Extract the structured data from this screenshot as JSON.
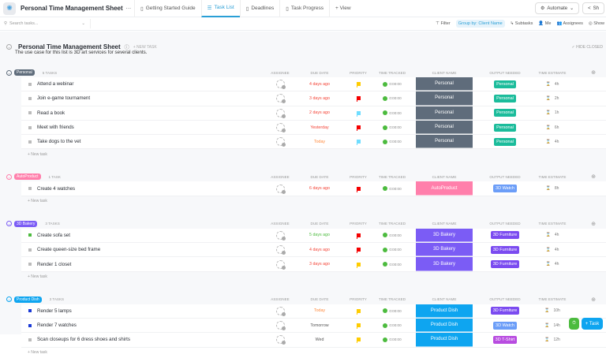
{
  "topbar": {
    "title": "Personal Time Management Sheet",
    "tabs": [
      {
        "label": "Getting Started Guide",
        "active": false
      },
      {
        "label": "Task List",
        "active": true
      },
      {
        "label": "Deadlines",
        "active": false
      },
      {
        "label": "Task Progress",
        "active": false
      }
    ],
    "add_view": "+ View",
    "automate": "Automate",
    "share": "Sh"
  },
  "toolbar": {
    "search_placeholder": "Search tasks...",
    "filter": "Filter",
    "group_by": "Group by: Client Name",
    "subtasks": "Subtasks",
    "me": "Me",
    "assignees": "Assignees",
    "show": "Show"
  },
  "list": {
    "title": "Personal Time Management Sheet",
    "new_task": "+ NEW TASK",
    "hide_closed": "✓ HIDE CLOSED",
    "description": "The use case for this list is 3D art services for several clients."
  },
  "columns": [
    "ASSIGNEE",
    "DUE DATE",
    "PRIORITY",
    "TIME TRACKED",
    "CLIENT NAME",
    "OUTPUT NEEDED",
    "TIME ESTIMATE"
  ],
  "new_task_label": "+ New task",
  "fab": {
    "task": "+ Task"
  },
  "groups": [
    {
      "name": "Personal",
      "count": "5 TASKS",
      "color": "#5f6c7b",
      "tasks": [
        {
          "name": "Attend a webinar",
          "status_color": "#bbbbbb",
          "due": "4 days ago",
          "due_color": "#f44336",
          "priority": "#ffcc00",
          "tracked": "0:00:00",
          "client": "Personal",
          "output": "Personal",
          "output_color": "#1bbc9b",
          "estimate": "4h"
        },
        {
          "name": "Join e-game tournament",
          "status_color": "#bbbbbb",
          "due": "3 days ago",
          "due_color": "#f44336",
          "priority": "#f50000",
          "tracked": "0:00:00",
          "client": "Personal",
          "output": "Personal",
          "output_color": "#1bbc9b",
          "estimate": "2h"
        },
        {
          "name": "Read a book",
          "status_color": "#bbbbbb",
          "due": "2 days ago",
          "due_color": "#f44336",
          "priority": "#6fddff",
          "tracked": "0:00:00",
          "client": "Personal",
          "output": "Personal",
          "output_color": "#1bbc9b",
          "estimate": "1h"
        },
        {
          "name": "Meet with friends",
          "status_color": "#bbbbbb",
          "due": "Yesterday",
          "due_color": "#f44336",
          "priority": "#f50000",
          "tracked": "0:00:00",
          "client": "Personal",
          "output": "Personal",
          "output_color": "#1bbc9b",
          "estimate": "6h"
        },
        {
          "name": "Take dogs to the vet",
          "status_color": "#bbbbbb",
          "due": "Today",
          "due_color": "#ff8a3d",
          "priority": "#6fddff",
          "tracked": "0:00:00",
          "client": "Personal",
          "output": "Personal",
          "output_color": "#1bbc9b",
          "estimate": "4h"
        }
      ]
    },
    {
      "name": "AutoProduct",
      "count": "1 TASK",
      "color": "#ff7fab",
      "tasks": [
        {
          "name": "Create 4 watches",
          "status_color": "#bbbbbb",
          "due": "6 days ago",
          "due_color": "#f44336",
          "priority": "#f50000",
          "tracked": "0:00:00",
          "client": "AutoProduct",
          "output": "3D Watch",
          "output_color": "#6c9ef8",
          "estimate": "8h"
        }
      ]
    },
    {
      "name": "3D Bakery",
      "count": "3 TASKS",
      "color": "#7b5cf5",
      "tasks": [
        {
          "name": "Create sofa set",
          "status_color": "#4cbb3e",
          "due": "5 days ago",
          "due_color": "#4cbb3e",
          "priority": "#f50000",
          "tracked": "0:00:00",
          "client": "3D Bakery",
          "output": "3D Furniture",
          "output_color": "#7b4bf0",
          "estimate": "4h"
        },
        {
          "name": "Create queen-size bed frame",
          "status_color": "#bbbbbb",
          "due": "4 days ago",
          "due_color": "#f44336",
          "priority": "#f50000",
          "tracked": "0:00:00",
          "client": "3D Bakery",
          "output": "3D Furniture",
          "output_color": "#7b4bf0",
          "estimate": "4h"
        },
        {
          "name": "Render 1 closet",
          "status_color": "#bbbbbb",
          "due": "3 days ago",
          "due_color": "#f44336",
          "priority": "#ffcc00",
          "tracked": "0:00:00",
          "client": "3D Bakery",
          "output": "3D Furniture",
          "output_color": "#7b4bf0",
          "estimate": "4h"
        }
      ]
    },
    {
      "name": "Product Dish",
      "count": "3 TASKS",
      "color": "#0ea5f0",
      "tasks": [
        {
          "name": "Render 5 lamps",
          "status_color": "#1a3ad6",
          "due": "Today",
          "due_color": "#ff8a3d",
          "priority": "#ffcc00",
          "tracked": "0:00:00",
          "client": "Product Dish",
          "output": "3D Furniture",
          "output_color": "#7b4bf0",
          "estimate": "10h"
        },
        {
          "name": "Render 7 watches",
          "status_color": "#1a3ad6",
          "due": "Tomorrow",
          "due_color": "#555555",
          "priority": "#ffcc00",
          "tracked": "0:00:00",
          "client": "Product Dish",
          "output": "3D Watch",
          "output_color": "#6c9ef8",
          "estimate": "14h"
        },
        {
          "name": "Scan closeups for 6 dress shoes and shirts",
          "status_color": "#bbbbbb",
          "due": "Wed",
          "due_color": "#555555",
          "priority": "#ffcc00",
          "tracked": "0:00:00",
          "client": "Product Dish",
          "output": "3D T-Shirt",
          "output_color": "#b84ce0",
          "estimate": "12h"
        }
      ]
    }
  ]
}
